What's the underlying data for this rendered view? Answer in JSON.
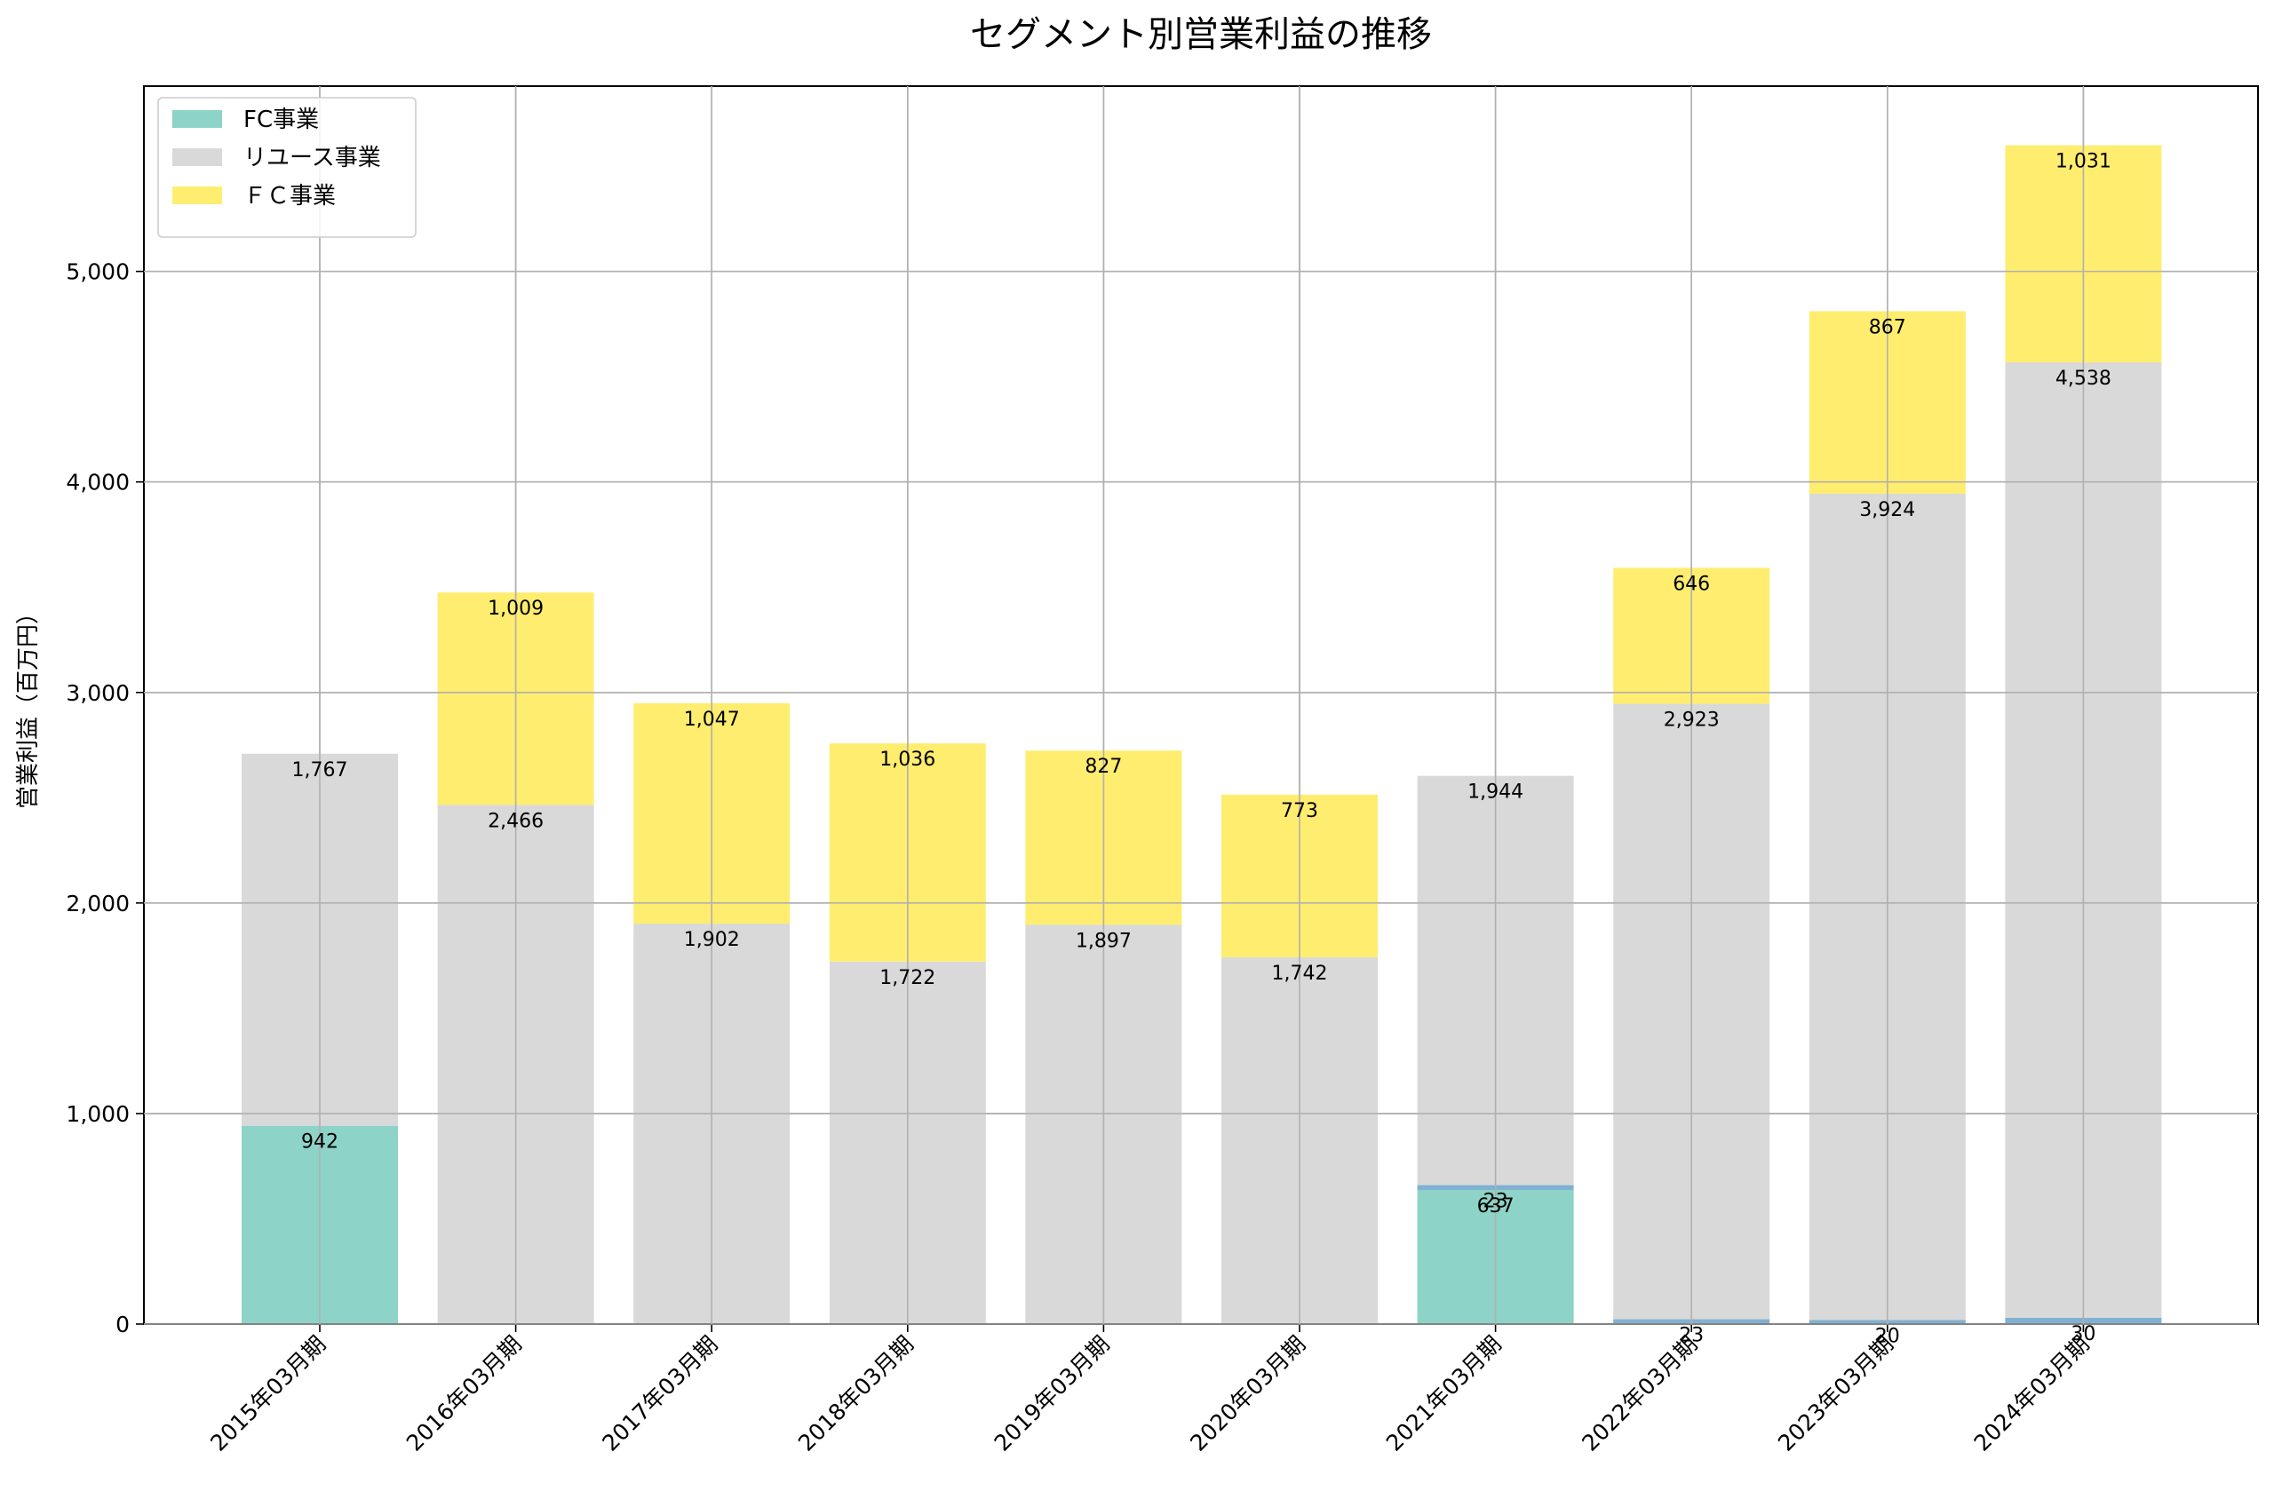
{
  "chart_data": {
    "type": "bar",
    "stacked": true,
    "title": "セグメント別営業利益の推移",
    "xlabel": "",
    "ylabel": "営業利益（百万円）",
    "ylim": [
      0,
      5880
    ],
    "yticks": [
      0,
      1000,
      2000,
      3000,
      4000,
      5000
    ],
    "ytick_labels": [
      "0",
      "1,000",
      "2,000",
      "3,000",
      "4,000",
      "5,000"
    ],
    "grid": true,
    "legend_position": "top-left",
    "categories": [
      "2015年03月期",
      "2016年03月期",
      "2017年03月期",
      "2018年03月期",
      "2019年03月期",
      "2020年03月期",
      "2021年03月期",
      "2022年03月期",
      "2023年03月期",
      "2024年03月期"
    ],
    "series": [
      {
        "name": "FC事業",
        "color": "#8dd3c7",
        "in_legend": true,
        "values": [
          942,
          null,
          null,
          null,
          null,
          null,
          637,
          null,
          null,
          null
        ],
        "labels": [
          "942",
          "",
          "",
          "",
          "",
          "",
          "637",
          "",
          "",
          ""
        ]
      },
      {
        "name": "",
        "color": "#80b1d3",
        "in_legend": false,
        "values": [
          null,
          null,
          null,
          null,
          null,
          null,
          23,
          23,
          20,
          30
        ],
        "labels": [
          "",
          "",
          "",
          "",
          "",
          "",
          "23",
          "23",
          "20",
          "30"
        ]
      },
      {
        "name": "リユース事業",
        "color": "#d9d9d9",
        "in_legend": true,
        "values": [
          1767,
          2466,
          1902,
          1722,
          1897,
          1742,
          1944,
          2923,
          3924,
          4538
        ],
        "labels": [
          "1,767",
          "2,466",
          "1,902",
          "1,722",
          "1,897",
          "1,742",
          "1,944",
          "2,923",
          "3,924",
          "4,538"
        ]
      },
      {
        "name": "ＦＣ事業",
        "color": "#ffed6f",
        "in_legend": true,
        "values": [
          null,
          1009,
          1047,
          1036,
          827,
          773,
          null,
          646,
          867,
          1031
        ],
        "labels": [
          "",
          "1,009",
          "1,047",
          "1,036",
          "827",
          "773",
          "",
          "646",
          "867",
          "1,031"
        ]
      }
    ]
  }
}
